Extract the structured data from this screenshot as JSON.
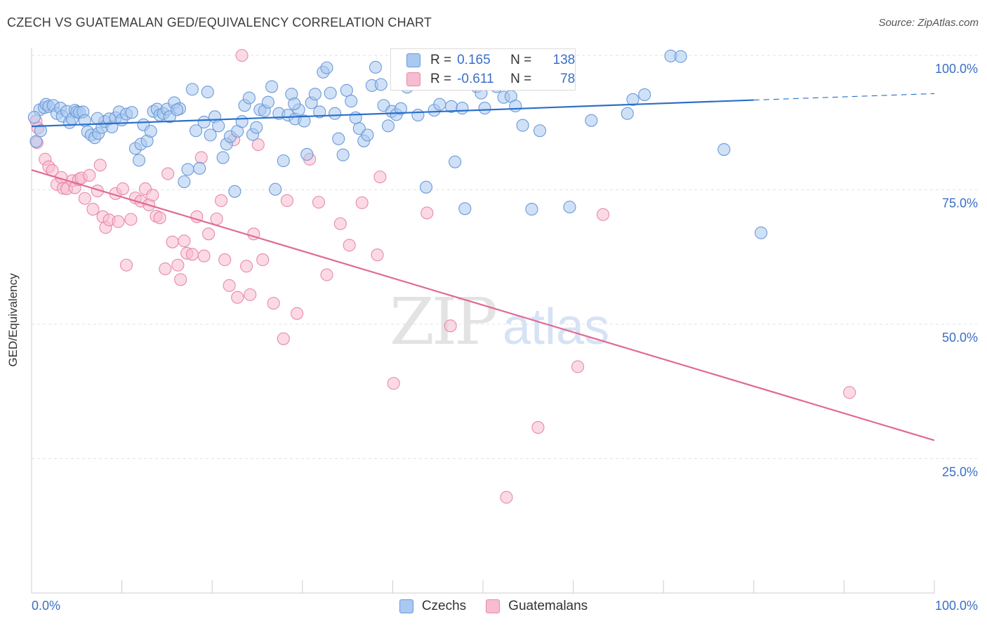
{
  "header": {
    "title": "CZECH VS GUATEMALAN GED/EQUIVALENCY CORRELATION CHART",
    "source": "Source: ZipAtlas.com"
  },
  "legend": {
    "r_label": "R =",
    "n_label": "N =",
    "rows": [
      {
        "r": "0.165",
        "n": "138",
        "color": "#aac8f0",
        "border": "#6a9ad8"
      },
      {
        "r": "-0.611",
        "n": "78",
        "color": "#f7bcd0",
        "border": "#e68aaa"
      }
    ]
  },
  "bottom_legend": [
    {
      "label": "Czechs",
      "color": "#aac8f0",
      "border": "#6a9ad8"
    },
    {
      "label": "Guatemalans",
      "color": "#f7bcd0",
      "border": "#e68aaa"
    }
  ],
  "watermark": {
    "zip": "ZIP",
    "atlas": "atlas"
  },
  "chart_data": {
    "type": "scatter",
    "title": "CZECH VS GUATEMALAN GED/EQUIVALENCY CORRELATION CHART",
    "xlabel": "",
    "ylabel": "GED/Equivalency",
    "xlim": [
      0,
      100
    ],
    "ylim": [
      0,
      100
    ],
    "x_tick_labels": [
      "0.0%",
      "100.0%"
    ],
    "y_tick_labels": [
      "100.0%",
      "75.0%",
      "50.0%",
      "25.0%"
    ],
    "y_ticks": [
      100,
      75,
      50,
      25
    ],
    "grid": true,
    "legend_position": "top-center",
    "series": [
      {
        "name": "Czechs",
        "color": "#6a9ad8",
        "fill": "#aac8f0",
        "line_color": "#2a6fca",
        "trend": {
          "x": [
            0,
            80
          ],
          "y": [
            86.8,
            91.7
          ],
          "dashed_to": [
            100,
            92.9
          ]
        },
        "points": [
          [
            0.9,
            89.9
          ],
          [
            1.4,
            90.3
          ],
          [
            1.6,
            90.9
          ],
          [
            1.9,
            90.5
          ],
          [
            2.4,
            90.7
          ],
          [
            2.8,
            89.2
          ],
          [
            3.2,
            90.2
          ],
          [
            3.4,
            88.7
          ],
          [
            3.9,
            89.6
          ],
          [
            4.2,
            87.5
          ],
          [
            4.5,
            88.2
          ],
          [
            4.8,
            89.8
          ],
          [
            5.0,
            89.5
          ],
          [
            5.3,
            89.4
          ],
          [
            5.7,
            89.5
          ],
          [
            5.9,
            87.9
          ],
          [
            6.2,
            85.8
          ],
          [
            6.6,
            85.2
          ],
          [
            7.0,
            84.7
          ],
          [
            7.4,
            85.5
          ],
          [
            7.8,
            86.6
          ],
          [
            8.1,
            87.7
          ],
          [
            8.6,
            88.2
          ],
          [
            8.9,
            86.7
          ],
          [
            9.3,
            88.4
          ],
          [
            9.7,
            89.5
          ],
          [
            10.0,
            88.0
          ],
          [
            10.5,
            89.1
          ],
          [
            11.1,
            89.4
          ],
          [
            11.5,
            82.7
          ],
          [
            11.9,
            80.5
          ],
          [
            12.1,
            83.5
          ],
          [
            12.4,
            87.1
          ],
          [
            12.8,
            84.1
          ],
          [
            13.2,
            85.9
          ],
          [
            13.5,
            89.6
          ],
          [
            13.9,
            90.0
          ],
          [
            14.2,
            88.9
          ],
          [
            14.6,
            89.2
          ],
          [
            15.0,
            90.0
          ],
          [
            15.3,
            88.6
          ],
          [
            15.8,
            91.2
          ],
          [
            16.4,
            90.1
          ],
          [
            16.9,
            76.5
          ],
          [
            17.3,
            78.8
          ],
          [
            17.8,
            93.7
          ],
          [
            18.2,
            86.0
          ],
          [
            18.6,
            79.0
          ],
          [
            19.1,
            87.6
          ],
          [
            19.5,
            93.2
          ],
          [
            19.8,
            85.2
          ],
          [
            20.3,
            88.6
          ],
          [
            20.7,
            86.9
          ],
          [
            21.2,
            81.0
          ],
          [
            21.6,
            83.5
          ],
          [
            22.0,
            84.9
          ],
          [
            22.5,
            74.7
          ],
          [
            22.8,
            85.9
          ],
          [
            23.3,
            87.7
          ],
          [
            23.6,
            90.7
          ],
          [
            24.1,
            92.1
          ],
          [
            24.5,
            85.3
          ],
          [
            24.9,
            86.6
          ],
          [
            25.3,
            89.9
          ],
          [
            25.8,
            89.7
          ],
          [
            26.2,
            91.3
          ],
          [
            26.6,
            94.2
          ],
          [
            27.0,
            75.1
          ],
          [
            27.4,
            89.2
          ],
          [
            27.9,
            80.4
          ],
          [
            28.4,
            88.9
          ],
          [
            28.8,
            92.8
          ],
          [
            29.2,
            88.2
          ],
          [
            29.6,
            89.9
          ],
          [
            30.2,
            87.8
          ],
          [
            30.5,
            81.6
          ],
          [
            31.0,
            91.2
          ],
          [
            31.4,
            92.8
          ],
          [
            31.9,
            89.5
          ],
          [
            32.3,
            96.9
          ],
          [
            32.7,
            97.7
          ],
          [
            33.1,
            93.0
          ],
          [
            33.6,
            89.2
          ],
          [
            34.0,
            84.5
          ],
          [
            34.5,
            81.5
          ],
          [
            34.9,
            93.5
          ],
          [
            35.4,
            91.5
          ],
          [
            35.9,
            88.4
          ],
          [
            36.3,
            86.4
          ],
          [
            36.8,
            84.1
          ],
          [
            37.2,
            85.2
          ],
          [
            37.7,
            94.4
          ],
          [
            38.1,
            97.8
          ],
          [
            38.7,
            94.6
          ],
          [
            39.0,
            90.7
          ],
          [
            39.5,
            86.9
          ],
          [
            39.9,
            89.6
          ],
          [
            40.4,
            89.0
          ],
          [
            40.9,
            90.1
          ],
          [
            41.6,
            94.1
          ],
          [
            42.1,
            99.9
          ],
          [
            43.7,
            75.5
          ],
          [
            44.6,
            89.8
          ],
          [
            45.2,
            90.9
          ],
          [
            45.7,
            96.1
          ],
          [
            46.5,
            90.5
          ],
          [
            46.9,
            80.2
          ],
          [
            47.7,
            90.2
          ],
          [
            48.0,
            71.5
          ],
          [
            49.3,
            94.2
          ],
          [
            49.8,
            93.0
          ],
          [
            50.2,
            90.2
          ],
          [
            50.6,
            98.8
          ],
          [
            51.5,
            94.2
          ],
          [
            52.3,
            92.2
          ],
          [
            53.1,
            92.4
          ],
          [
            53.6,
            90.6
          ],
          [
            54.4,
            87.0
          ],
          [
            55.4,
            71.4
          ],
          [
            56.3,
            86.0
          ],
          [
            57.5,
            99.7
          ],
          [
            59.6,
            71.8
          ],
          [
            62.0,
            87.9
          ],
          [
            66.0,
            89.2
          ],
          [
            66.6,
            91.8
          ],
          [
            67.9,
            92.7
          ],
          [
            70.8,
            99.9
          ],
          [
            71.9,
            99.8
          ],
          [
            76.7,
            82.5
          ],
          [
            80.8,
            67.0
          ],
          [
            0.5,
            84.0
          ],
          [
            0.3,
            88.5
          ],
          [
            1.0,
            86.0
          ],
          [
            57.0,
            98.5
          ],
          [
            42.8,
            88.9
          ],
          [
            29.1,
            91.0
          ],
          [
            16.1,
            89.9
          ],
          [
            7.3,
            88.3
          ]
        ]
      },
      {
        "name": "Guatemalans",
        "color": "#e68aaa",
        "fill": "#f7bcd0",
        "line_color": "#e06a94",
        "trend": {
          "x": [
            0,
            100
          ],
          "y": [
            78.7,
            28.4
          ]
        },
        "points": [
          [
            0.5,
            87.8
          ],
          [
            0.7,
            86.5
          ],
          [
            0.6,
            83.8
          ],
          [
            1.5,
            80.7
          ],
          [
            1.9,
            79.3
          ],
          [
            2.3,
            78.6
          ],
          [
            2.8,
            76.0
          ],
          [
            3.3,
            77.3
          ],
          [
            3.5,
            75.3
          ],
          [
            3.9,
            75.2
          ],
          [
            4.5,
            76.7
          ],
          [
            4.8,
            75.4
          ],
          [
            5.2,
            76.9
          ],
          [
            5.5,
            77.2
          ],
          [
            5.9,
            73.4
          ],
          [
            6.4,
            77.7
          ],
          [
            6.8,
            71.4
          ],
          [
            7.3,
            74.8
          ],
          [
            7.6,
            79.6
          ],
          [
            7.9,
            70.0
          ],
          [
            8.2,
            68.0
          ],
          [
            8.6,
            69.4
          ],
          [
            9.3,
            74.3
          ],
          [
            9.6,
            69.1
          ],
          [
            10.1,
            75.2
          ],
          [
            10.5,
            61.0
          ],
          [
            11.0,
            69.5
          ],
          [
            11.5,
            73.5
          ],
          [
            12.1,
            72.9
          ],
          [
            12.6,
            75.2
          ],
          [
            13.0,
            72.2
          ],
          [
            13.4,
            74.0
          ],
          [
            13.8,
            70.1
          ],
          [
            14.2,
            69.8
          ],
          [
            14.8,
            60.3
          ],
          [
            15.1,
            78.0
          ],
          [
            15.6,
            65.3
          ],
          [
            16.2,
            61.0
          ],
          [
            16.5,
            58.3
          ],
          [
            16.9,
            65.5
          ],
          [
            17.2,
            63.2
          ],
          [
            17.8,
            63.0
          ],
          [
            18.3,
            70.0
          ],
          [
            18.8,
            81.0
          ],
          [
            19.1,
            62.7
          ],
          [
            19.6,
            66.8
          ],
          [
            20.5,
            69.6
          ],
          [
            21.0,
            73.0
          ],
          [
            21.4,
            62.0
          ],
          [
            21.9,
            57.2
          ],
          [
            22.4,
            84.3
          ],
          [
            22.8,
            55.0
          ],
          [
            23.3,
            100.0
          ],
          [
            23.8,
            60.8
          ],
          [
            24.2,
            55.5
          ],
          [
            24.6,
            66.8
          ],
          [
            25.1,
            83.4
          ],
          [
            25.6,
            62.0
          ],
          [
            26.8,
            53.9
          ],
          [
            27.9,
            47.3
          ],
          [
            28.3,
            73.0
          ],
          [
            29.4,
            52.0
          ],
          [
            30.8,
            80.7
          ],
          [
            31.8,
            72.7
          ],
          [
            32.7,
            59.2
          ],
          [
            34.2,
            68.7
          ],
          [
            35.2,
            64.7
          ],
          [
            36.6,
            72.6
          ],
          [
            38.3,
            62.9
          ],
          [
            38.6,
            77.4
          ],
          [
            40.1,
            39.0
          ],
          [
            43.8,
            70.7
          ],
          [
            46.4,
            49.7
          ],
          [
            52.6,
            17.8
          ],
          [
            56.1,
            30.8
          ],
          [
            60.5,
            42.1
          ],
          [
            63.3,
            70.4
          ],
          [
            90.6,
            37.3
          ]
        ]
      }
    ]
  }
}
